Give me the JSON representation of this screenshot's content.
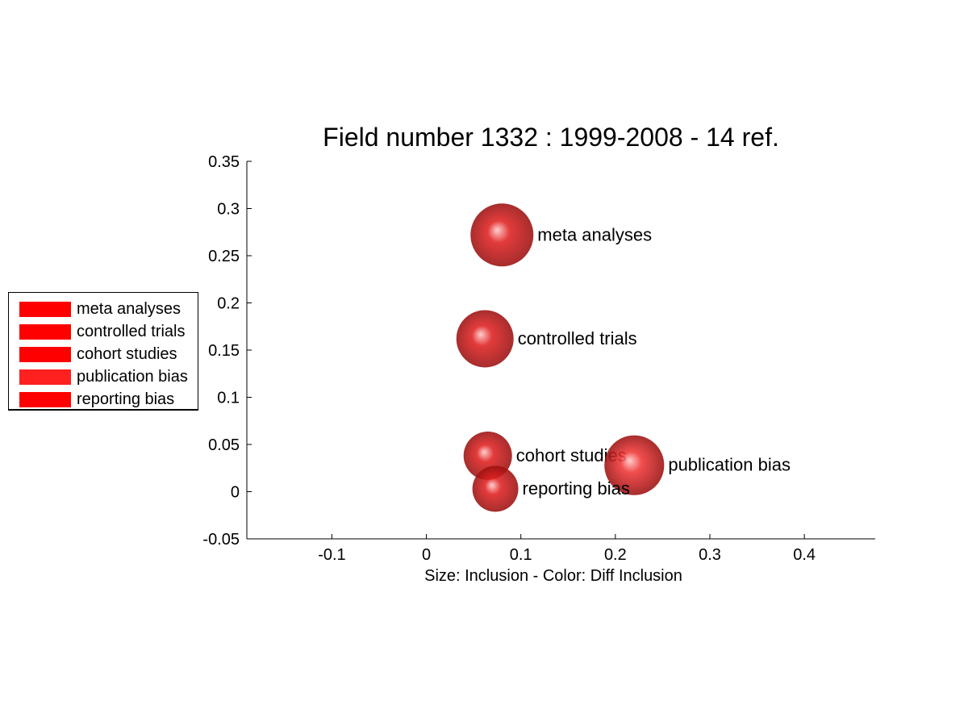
{
  "chart_data": {
    "type": "scatter",
    "title": "Field number 1332 : 1999-2008  - 14 ref.",
    "xlabel": "Size: Inclusion - Color: Diff Inclusion",
    "ylabel": "",
    "xlim": [
      -0.19,
      0.475
    ],
    "ylim": [
      -0.05,
      0.35
    ],
    "xticks": [
      -0.1,
      0,
      0.1,
      0.2,
      0.3,
      0.4
    ],
    "xtick_labels": [
      "-0.1",
      "0",
      "0.1",
      "0.2",
      "0.3",
      "0.4"
    ],
    "yticks": [
      -0.05,
      0,
      0.05,
      0.1,
      0.15,
      0.2,
      0.25,
      0.3,
      0.35
    ],
    "ytick_labels": [
      "-0.05",
      "0",
      "0.05",
      "0.1",
      "0.15",
      "0.2",
      "0.25",
      "0.3",
      "0.35"
    ],
    "grid": false,
    "legend_position": "left",
    "points": [
      {
        "label": "meta analyses",
        "x": 0.08,
        "y": 0.272,
        "size": 1.0,
        "color": "#e02020"
      },
      {
        "label": "controlled trials",
        "x": 0.062,
        "y": 0.162,
        "size": 0.91,
        "color": "#e02020"
      },
      {
        "label": "cohort studies",
        "x": 0.065,
        "y": 0.038,
        "size": 0.77,
        "color": "#e02020"
      },
      {
        "label": "publication bias",
        "x": 0.22,
        "y": 0.028,
        "size": 0.95,
        "color": "#f03535"
      },
      {
        "label": "reporting bias",
        "x": 0.073,
        "y": 0.003,
        "size": 0.73,
        "color": "#e02020"
      }
    ]
  },
  "legend": {
    "items": [
      {
        "label": "meta analyses",
        "color": "#ff0000"
      },
      {
        "label": "controlled trials",
        "color": "#ff0000"
      },
      {
        "label": "cohort studies",
        "color": "#ff0000"
      },
      {
        "label": "publication bias",
        "color": "#ff2020"
      },
      {
        "label": "reporting bias",
        "color": "#ff0000"
      }
    ]
  }
}
